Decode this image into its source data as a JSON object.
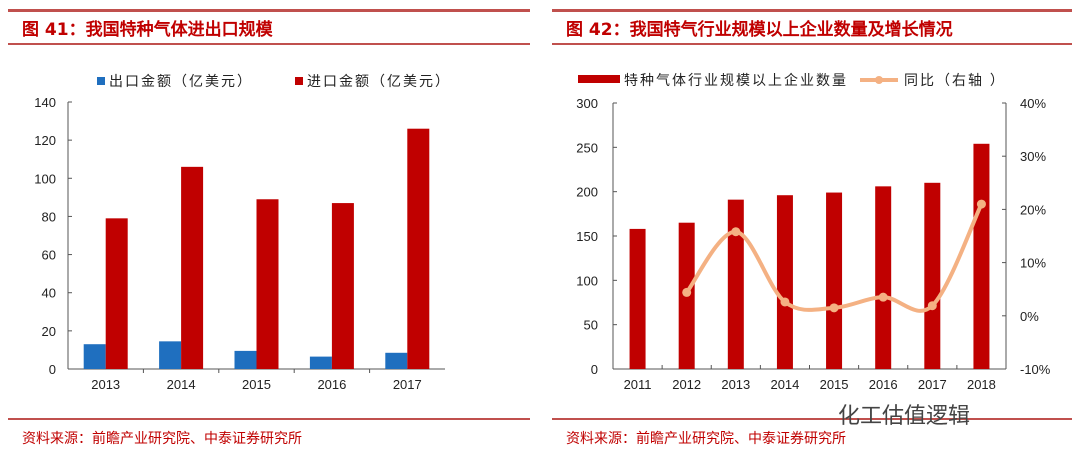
{
  "left": {
    "title": "图 41：我国特种气体进出口规模",
    "source": "资料来源：前瞻产业研究院、中泰证券研究所"
  },
  "right": {
    "title": "图 42：我国特气行业规模以上企业数量及增长情况",
    "source": "资料来源：前瞻产业研究院、中泰证券研究所"
  },
  "watermark": "化工估值逻辑",
  "colors": {
    "export": "#1f6fbf",
    "import": "#c00000",
    "bar": "#c00000",
    "line": "#f4b183"
  },
  "chart_data": [
    {
      "type": "bar",
      "title": "我国特种气体进出口规模",
      "categories": [
        "2013",
        "2014",
        "2015",
        "2016",
        "2017"
      ],
      "series": [
        {
          "name": "出口金额（亿美元）",
          "values": [
            13,
            14.5,
            9.5,
            6.5,
            8.5
          ]
        },
        {
          "name": "进口金额（亿美元）",
          "values": [
            79,
            106,
            89,
            87,
            126
          ]
        }
      ],
      "ylim": [
        0,
        140
      ],
      "yticks": [
        0,
        20,
        40,
        60,
        80,
        100,
        120,
        140
      ],
      "legend": "top"
    },
    {
      "type": "bar+line",
      "title": "我国特气行业规模以上企业数量及增长情况",
      "categories": [
        "2011",
        "2012",
        "2013",
        "2014",
        "2015",
        "2016",
        "2017",
        "2018"
      ],
      "series": [
        {
          "name": "特种气体行业规模以上企业数量",
          "axis": "left",
          "values": [
            158,
            165,
            191,
            196,
            199,
            206,
            210,
            254
          ]
        },
        {
          "name": "同比（右轴 ）",
          "axis": "right",
          "values": [
            null,
            4.4,
            15.8,
            2.6,
            1.5,
            3.5,
            1.9,
            21.0
          ]
        }
      ],
      "ylim": [
        0,
        300
      ],
      "yticks": [
        0,
        50,
        100,
        150,
        200,
        250,
        300
      ],
      "y2lim": [
        -10,
        40
      ],
      "y2ticks": [
        "-10%",
        "0%",
        "10%",
        "20%",
        "30%",
        "40%"
      ],
      "legend": "top"
    }
  ]
}
